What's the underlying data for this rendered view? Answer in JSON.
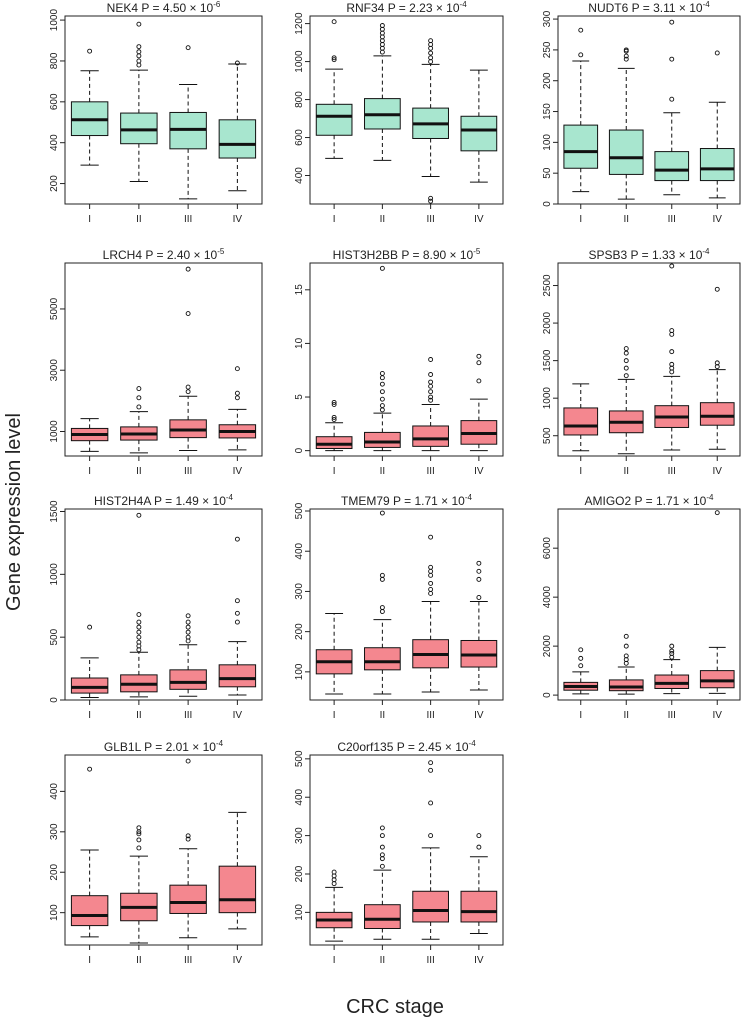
{
  "figure": {
    "ylabel": "Gene expression level",
    "xlabel": "CRC stage",
    "category_labels": [
      "I",
      "II",
      "III",
      "IV"
    ]
  },
  "colors": {
    "green": "#a8e6cf",
    "red": "#f4878f",
    "line": "#111111"
  },
  "chart_data": [
    {
      "type": "box",
      "gene": "NEK4",
      "p_mant": "4.50",
      "p_exp": "-6",
      "color": "green",
      "ylim": [
        100,
        1020
      ],
      "ticks": [
        200,
        400,
        600,
        800,
        1000
      ],
      "categories": [
        "I",
        "II",
        "III",
        "IV"
      ],
      "boxes": [
        {
          "min": 290,
          "q1": 435,
          "med": 512,
          "q3": 600,
          "max": 752,
          "out": [
            848
          ]
        },
        {
          "min": 210,
          "q1": 395,
          "med": 463,
          "q3": 545,
          "max": 755,
          "out": [
            780,
            800,
            825,
            845,
            870,
            980
          ]
        },
        {
          "min": 125,
          "q1": 370,
          "med": 465,
          "q3": 548,
          "max": 685,
          "out": [
            865
          ]
        },
        {
          "min": 165,
          "q1": 325,
          "med": 392,
          "q3": 512,
          "max": 785,
          "out": [
            790
          ]
        }
      ]
    },
    {
      "type": "box",
      "gene": "RNF34",
      "p_mant": "2.23",
      "p_exp": "-4",
      "color": "green",
      "ylim": [
        250,
        1240
      ],
      "ticks": [
        400,
        600,
        800,
        1000,
        1200
      ],
      "categories": [
        "I",
        "II",
        "III",
        "IV"
      ],
      "boxes": [
        {
          "min": 490,
          "q1": 612,
          "med": 712,
          "q3": 775,
          "max": 960,
          "out": [
            1010,
            1020,
            1210
          ]
        },
        {
          "min": 480,
          "q1": 645,
          "med": 720,
          "q3": 805,
          "max": 1030,
          "out": [
            1050,
            1070,
            1090,
            1110,
            1130,
            1150,
            1170,
            1190
          ]
        },
        {
          "min": 395,
          "q1": 595,
          "med": 672,
          "q3": 755,
          "max": 985,
          "out": [
            1000,
            1020,
            1045,
            1070,
            1090,
            1110,
            265,
            280
          ]
        },
        {
          "min": 365,
          "q1": 530,
          "med": 640,
          "q3": 712,
          "max": 955,
          "out": []
        }
      ]
    },
    {
      "type": "box",
      "gene": "NUDT6",
      "p_mant": "3.11",
      "p_exp": "-4",
      "color": "green",
      "ylim": [
        0,
        305
      ],
      "ticks": [
        0,
        50,
        100,
        150,
        200,
        250,
        300
      ],
      "categories": [
        "I",
        "II",
        "III",
        "IV"
      ],
      "boxes": [
        {
          "min": 20,
          "q1": 58,
          "med": 85,
          "q3": 128,
          "max": 232,
          "out": [
            242,
            282
          ]
        },
        {
          "min": 8,
          "q1": 48,
          "med": 75,
          "q3": 120,
          "max": 220,
          "out": [
            235,
            240,
            248,
            250
          ]
        },
        {
          "min": 15,
          "q1": 38,
          "med": 55,
          "q3": 85,
          "max": 148,
          "out": [
            170,
            235,
            295
          ]
        },
        {
          "min": 10,
          "q1": 38,
          "med": 57,
          "q3": 90,
          "max": 165,
          "out": [
            245
          ]
        }
      ]
    },
    {
      "type": "box",
      "gene": "LRCH4",
      "p_mant": "2.40",
      "p_exp": "-5",
      "color": "red",
      "ylim": [
        200,
        6500
      ],
      "ticks": [
        1000,
        3000,
        5000
      ],
      "categories": [
        "I",
        "II",
        "III",
        "IV"
      ],
      "boxes": [
        {
          "min": 350,
          "q1": 700,
          "med": 900,
          "q3": 1100,
          "max": 1420,
          "out": []
        },
        {
          "min": 300,
          "q1": 720,
          "med": 920,
          "q3": 1150,
          "max": 1650,
          "out": [
            1800,
            2100,
            2400
          ]
        },
        {
          "min": 380,
          "q1": 800,
          "med": 1050,
          "q3": 1380,
          "max": 2150,
          "out": [
            2300,
            2450,
            4850,
            6300
          ]
        },
        {
          "min": 400,
          "q1": 790,
          "med": 1000,
          "q3": 1220,
          "max": 1720,
          "out": [
            2100,
            2250,
            3050
          ]
        }
      ]
    },
    {
      "type": "box",
      "gene": "HIST3H2BB",
      "p_mant": "8.90",
      "p_exp": "-5",
      "color": "red",
      "ylim": [
        -0.5,
        17.5
      ],
      "ticks": [
        0,
        5,
        10,
        15
      ],
      "categories": [
        "I",
        "II",
        "III",
        "IV"
      ],
      "boxes": [
        {
          "min": 0.0,
          "q1": 0.2,
          "med": 0.6,
          "q3": 1.3,
          "max": 2.6,
          "out": [
            2.9,
            3.1,
            4.3,
            4.5
          ]
        },
        {
          "min": 0.0,
          "q1": 0.3,
          "med": 0.8,
          "q3": 1.7,
          "max": 3.5,
          "out": [
            3.8,
            4.2,
            4.8,
            5.5,
            6.2,
            6.8,
            7.2,
            17.0
          ]
        },
        {
          "min": 0.0,
          "q1": 0.4,
          "med": 1.1,
          "q3": 2.3,
          "max": 4.3,
          "out": [
            4.7,
            5.0,
            5.5,
            6.0,
            6.4,
            7.1,
            8.5
          ]
        },
        {
          "min": 0.0,
          "q1": 0.6,
          "med": 1.6,
          "q3": 2.8,
          "max": 4.8,
          "out": [
            6.5,
            8.2,
            8.8
          ]
        }
      ]
    },
    {
      "type": "box",
      "gene": "SPSB3",
      "p_mant": "1.33",
      "p_exp": "-4",
      "color": "red",
      "ylim": [
        230,
        2800
      ],
      "ticks": [
        500,
        1000,
        1500,
        2000,
        2500
      ],
      "categories": [
        "I",
        "II",
        "III",
        "IV"
      ],
      "boxes": [
        {
          "min": 300,
          "q1": 510,
          "med": 630,
          "q3": 870,
          "max": 1190,
          "out": []
        },
        {
          "min": 260,
          "q1": 540,
          "med": 680,
          "q3": 830,
          "max": 1250,
          "out": [
            1300,
            1400,
            1500,
            1600,
            1660
          ]
        },
        {
          "min": 310,
          "q1": 610,
          "med": 750,
          "q3": 900,
          "max": 1290,
          "out": [
            1350,
            1400,
            1450,
            1620,
            1850,
            1900,
            2760
          ]
        },
        {
          "min": 320,
          "q1": 640,
          "med": 760,
          "q3": 940,
          "max": 1380,
          "out": [
            1420,
            1470,
            2450
          ]
        }
      ]
    },
    {
      "type": "box",
      "gene": "HIST2H4A",
      "p_mant": "1.49",
      "p_exp": "-4",
      "color": "red",
      "ylim": [
        0,
        1520
      ],
      "ticks": [
        0,
        500,
        1000,
        1500
      ],
      "categories": [
        "I",
        "II",
        "III",
        "IV"
      ],
      "boxes": [
        {
          "min": 20,
          "q1": 55,
          "med": 100,
          "q3": 175,
          "max": 335,
          "out": [
            580
          ]
        },
        {
          "min": 25,
          "q1": 65,
          "med": 125,
          "q3": 200,
          "max": 380,
          "out": [
            400,
            430,
            460,
            500,
            540,
            580,
            620,
            680,
            1470
          ]
        },
        {
          "min": 30,
          "q1": 85,
          "med": 140,
          "q3": 240,
          "max": 440,
          "out": [
            470,
            500,
            540,
            580,
            620,
            670
          ]
        },
        {
          "min": 40,
          "q1": 105,
          "med": 170,
          "q3": 280,
          "max": 465,
          "out": [
            620,
            690,
            790,
            1280
          ]
        }
      ]
    },
    {
      "type": "box",
      "gene": "TMEM79",
      "p_mant": "1.71",
      "p_exp": "-4",
      "color": "red",
      "ylim": [
        30,
        505
      ],
      "ticks": [
        100,
        200,
        300,
        400,
        500
      ],
      "categories": [
        "I",
        "II",
        "III",
        "IV"
      ],
      "boxes": [
        {
          "min": 45,
          "q1": 95,
          "med": 125,
          "q3": 155,
          "max": 245,
          "out": []
        },
        {
          "min": 45,
          "q1": 105,
          "med": 125,
          "q3": 160,
          "max": 230,
          "out": [
            250,
            260,
            330,
            340,
            495
          ]
        },
        {
          "min": 50,
          "q1": 110,
          "med": 143,
          "q3": 180,
          "max": 275,
          "out": [
            295,
            305,
            320,
            340,
            350,
            360,
            435
          ]
        },
        {
          "min": 55,
          "q1": 112,
          "med": 142,
          "q3": 178,
          "max": 275,
          "out": [
            285,
            330,
            350,
            370
          ]
        }
      ]
    },
    {
      "type": "box",
      "gene": "AMIGO2",
      "p_mant": "1.71",
      "p_exp": "-4",
      "color": "red",
      "ylim": [
        -200,
        7600
      ],
      "ticks": [
        0,
        2000,
        4000,
        6000
      ],
      "categories": [
        "I",
        "II",
        "III",
        "IV"
      ],
      "boxes": [
        {
          "min": 50,
          "q1": 200,
          "med": 350,
          "q3": 520,
          "max": 950,
          "out": [
            1200,
            1500,
            1850
          ]
        },
        {
          "min": 40,
          "q1": 180,
          "med": 330,
          "q3": 620,
          "max": 1150,
          "out": [
            1300,
            1450,
            1600,
            2000,
            2400
          ]
        },
        {
          "min": 60,
          "q1": 270,
          "med": 480,
          "q3": 820,
          "max": 1450,
          "out": [
            1550,
            1700,
            1800,
            2000
          ]
        },
        {
          "min": 70,
          "q1": 300,
          "med": 580,
          "q3": 1000,
          "max": 1950,
          "out": [
            7450
          ]
        }
      ]
    },
    {
      "type": "box",
      "gene": "GLB1L",
      "p_mant": "2.01",
      "p_exp": "-4",
      "color": "red",
      "ylim": [
        20,
        490
      ],
      "ticks": [
        100,
        200,
        300,
        400
      ],
      "categories": [
        "I",
        "II",
        "III",
        "IV"
      ],
      "boxes": [
        {
          "min": 40,
          "q1": 68,
          "med": 93,
          "q3": 142,
          "max": 255,
          "out": [
            455
          ]
        },
        {
          "min": 25,
          "q1": 80,
          "med": 113,
          "q3": 148,
          "max": 240,
          "out": [
            260,
            280,
            295,
            300,
            310
          ]
        },
        {
          "min": 38,
          "q1": 98,
          "med": 125,
          "q3": 168,
          "max": 258,
          "out": [
            282,
            290,
            475
          ]
        },
        {
          "min": 60,
          "q1": 100,
          "med": 132,
          "q3": 215,
          "max": 348,
          "out": []
        }
      ]
    },
    {
      "type": "box",
      "gene": "C20orf135",
      "p_mant": "2.45",
      "p_exp": "-4",
      "color": "red",
      "ylim": [
        15,
        510
      ],
      "ticks": [
        100,
        200,
        300,
        400,
        500
      ],
      "categories": [
        "I",
        "II",
        "III",
        "IV"
      ],
      "boxes": [
        {
          "min": 25,
          "q1": 60,
          "med": 80,
          "q3": 100,
          "max": 165,
          "out": [
            175,
            185,
            195,
            205
          ]
        },
        {
          "min": 30,
          "q1": 58,
          "med": 82,
          "q3": 120,
          "max": 210,
          "out": [
            220,
            240,
            250,
            270,
            300,
            320
          ]
        },
        {
          "min": 30,
          "q1": 75,
          "med": 105,
          "q3": 155,
          "max": 268,
          "out": [
            300,
            385,
            470,
            490
          ]
        },
        {
          "min": 45,
          "q1": 75,
          "med": 102,
          "q3": 155,
          "max": 245,
          "out": [
            270,
            300
          ]
        }
      ]
    }
  ]
}
